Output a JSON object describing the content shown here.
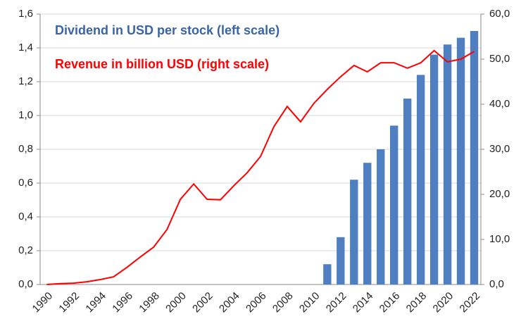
{
  "chart_data": {
    "type": "bar_line",
    "categories": [
      "1990",
      null,
      "1992",
      null,
      "1994",
      null,
      "1996",
      null,
      "1998",
      null,
      "2000",
      null,
      "2002",
      null,
      "2004",
      null,
      "2006",
      null,
      "2008",
      null,
      "2010",
      null,
      "2012",
      null,
      "2014",
      null,
      "2016",
      null,
      "2018",
      null,
      "2020",
      null,
      "2022"
    ],
    "series": [
      {
        "name": "Dividend in USD per stock (left scale)",
        "color": "#4f7fc0",
        "type": "bar",
        "axis": "y",
        "values": [
          null,
          null,
          null,
          null,
          null,
          null,
          null,
          null,
          null,
          null,
          null,
          null,
          null,
          null,
          null,
          null,
          null,
          null,
          null,
          null,
          null,
          0.12,
          0.28,
          0.62,
          0.72,
          0.8,
          0.94,
          1.1,
          1.24,
          1.36,
          1.42,
          1.46,
          1.5
        ]
      },
      {
        "name": "Revenue in billion USD (right scale)",
        "color": "#ff0000",
        "type": "line",
        "axis": "y2",
        "values": [
          0,
          0.2,
          0.3,
          0.6,
          1.1,
          1.7,
          3.8,
          6.1,
          8.3,
          12.2,
          18.9,
          22.3,
          18.9,
          18.8,
          21.9,
          24.8,
          28.4,
          35,
          39.5,
          36.1,
          40.2,
          43.3,
          46.1,
          48.6,
          47.2,
          49.2,
          49.2,
          48,
          49.2,
          51.9,
          49.4,
          50,
          51.7
        ]
      }
    ],
    "ylim": [
      0,
      1.6
    ],
    "yticks": [
      {
        "value": 0,
        "label": "0,0"
      },
      {
        "value": 0.2,
        "label": "0,2"
      },
      {
        "value": 0.4,
        "label": "0,4"
      },
      {
        "value": 0.6,
        "label": "0,6"
      },
      {
        "value": 0.8,
        "label": "0,8"
      },
      {
        "value": 1.0,
        "label": "1,0"
      },
      {
        "value": 1.2,
        "label": "1,2"
      },
      {
        "value": 1.4,
        "label": "1,4"
      },
      {
        "value": 1.6,
        "label": "1,6"
      }
    ],
    "y2lim": [
      0,
      60
    ],
    "y2ticks": [
      {
        "value": 0,
        "label": "0,0"
      },
      {
        "value": 10,
        "label": "10,0"
      },
      {
        "value": 20,
        "label": "20,0"
      },
      {
        "value": 30,
        "label": "30,0"
      },
      {
        "value": 40,
        "label": "40,0"
      },
      {
        "value": 50,
        "label": "50,0"
      },
      {
        "value": 60,
        "label": "60,0"
      }
    ],
    "grid": true
  }
}
